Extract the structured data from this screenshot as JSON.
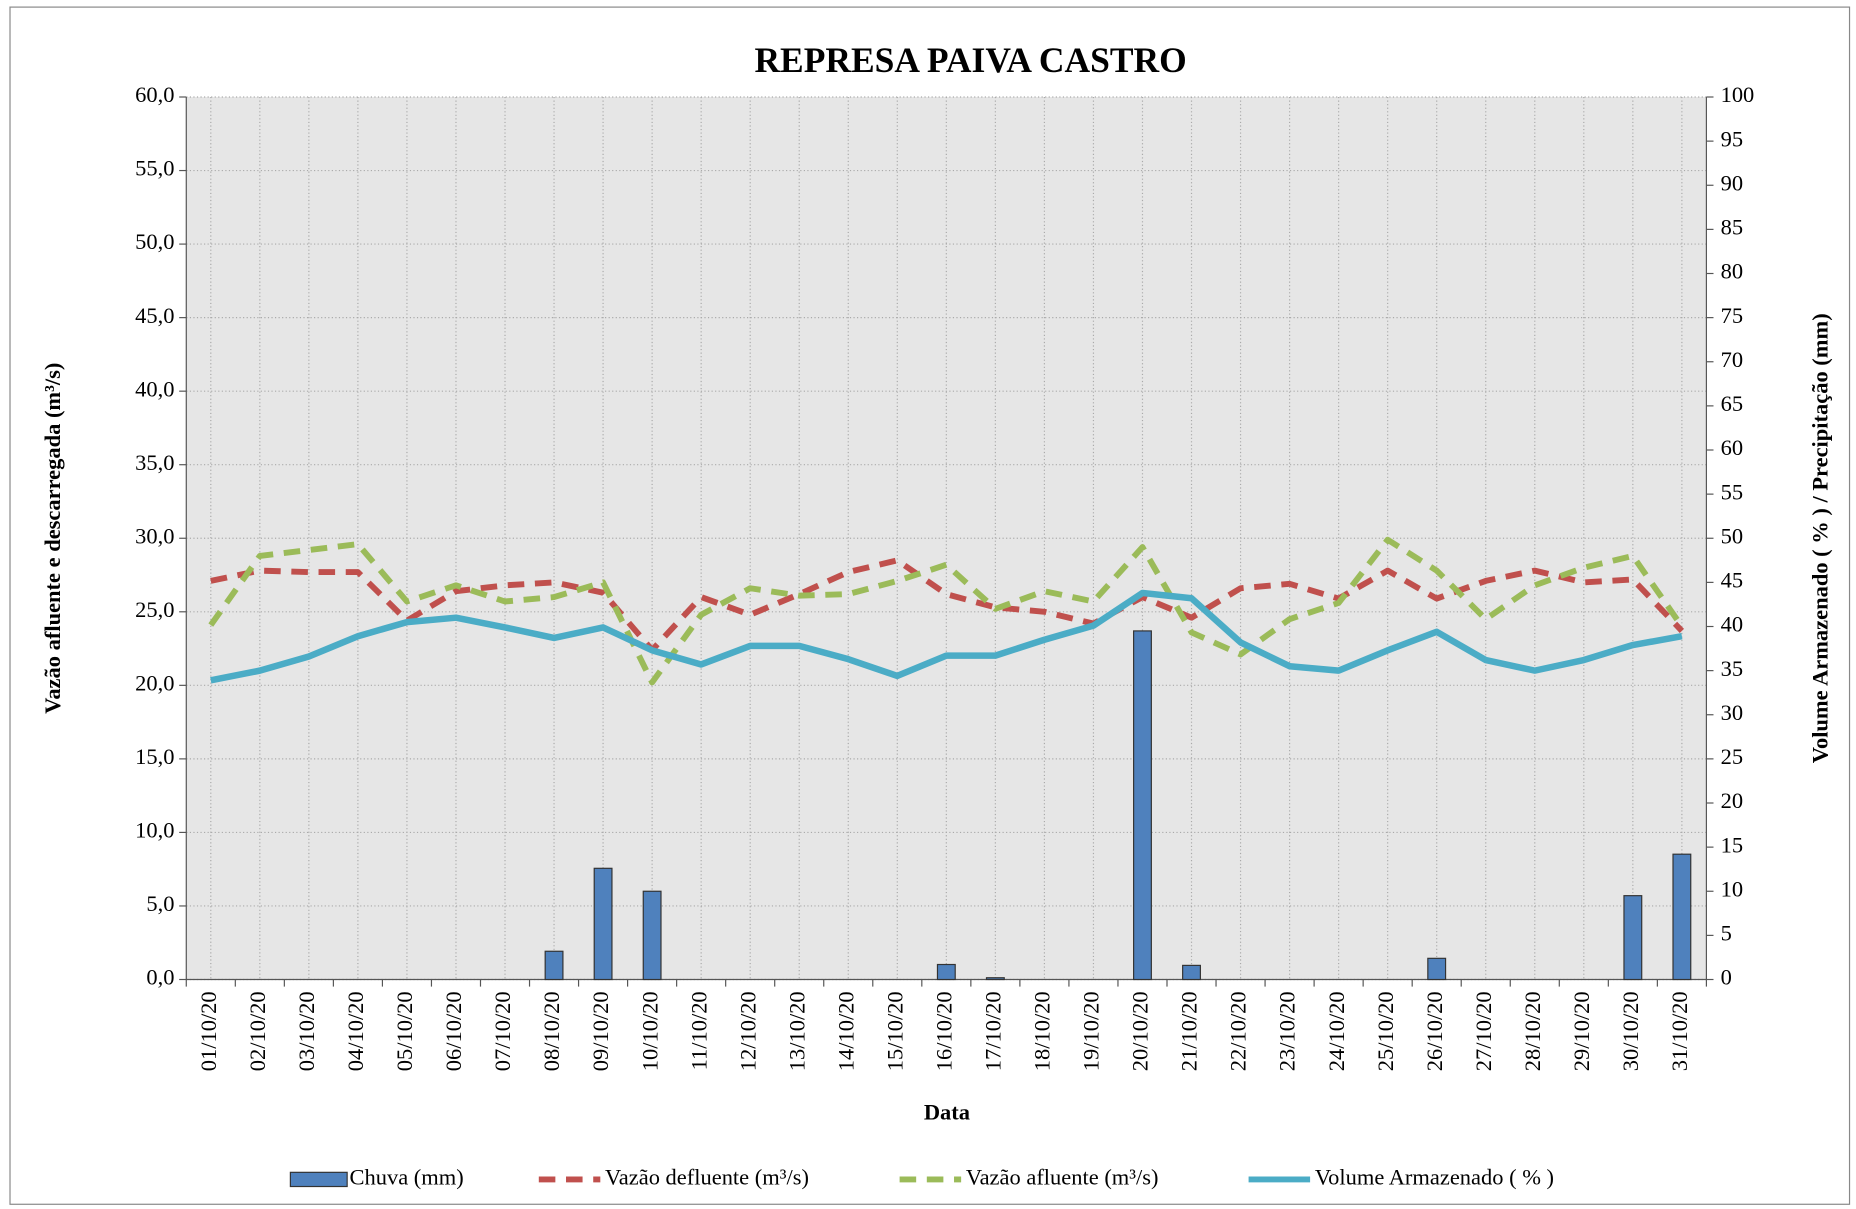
{
  "chart_data": {
    "type": "combo",
    "title": "REPRESA PAIVA CASTRO",
    "x_label": "Data",
    "y_label": "Vazão afluente e descarregada (m³/s)",
    "y2_label": "Volume Armazenado ( % ) / Precipitação  (mm)",
    "categories": [
      "01/10/20",
      "02/10/20",
      "03/10/20",
      "04/10/20",
      "05/10/20",
      "06/10/20",
      "07/10/20",
      "08/10/20",
      "09/10/20",
      "10/10/20",
      "11/10/20",
      "12/10/20",
      "13/10/20",
      "14/10/20",
      "15/10/20",
      "16/10/20",
      "17/10/20",
      "18/10/20",
      "19/10/20",
      "20/10/20",
      "21/10/20",
      "22/10/20",
      "23/10/20",
      "24/10/20",
      "25/10/20",
      "26/10/20",
      "27/10/20",
      "28/10/20",
      "29/10/20",
      "30/10/20",
      "31/10/20"
    ],
    "ylim": [
      0,
      60
    ],
    "yticks": [
      {
        "value": 0,
        "label": "0,0"
      },
      {
        "value": 5,
        "label": "5,0"
      },
      {
        "value": 10,
        "label": "10,0"
      },
      {
        "value": 15,
        "label": "15,0"
      },
      {
        "value": 20,
        "label": "20,0"
      },
      {
        "value": 25,
        "label": "25,0"
      },
      {
        "value": 30,
        "label": "30,0"
      },
      {
        "value": 35,
        "label": "35,0"
      },
      {
        "value": 40,
        "label": "40,0"
      },
      {
        "value": 45,
        "label": "45,0"
      },
      {
        "value": 50,
        "label": "50,0"
      },
      {
        "value": 55,
        "label": "55,0"
      },
      {
        "value": 60,
        "label": "60,0"
      }
    ],
    "y2lim": [
      0,
      100
    ],
    "y2ticks": [
      0,
      5,
      10,
      15,
      20,
      25,
      30,
      35,
      40,
      45,
      50,
      55,
      60,
      65,
      70,
      75,
      80,
      85,
      90,
      95,
      100
    ],
    "grid": true,
    "legend": "bottom",
    "series": [
      {
        "name": "Chuva (mm)",
        "type": "bar",
        "axis": "y2",
        "color": "#4f81bd",
        "values": [
          0,
          0,
          0,
          0,
          0,
          0,
          0,
          3.2,
          12.6,
          10.0,
          0,
          0,
          0,
          0,
          0,
          1.7,
          0.2,
          0,
          0,
          39.5,
          1.6,
          0,
          0,
          0,
          0,
          2.4,
          0,
          0,
          0,
          9.5,
          14.2
        ]
      },
      {
        "name": "Vazão defluente (m³/s)",
        "type": "line",
        "dash": true,
        "color": "#c0504d",
        "values": [
          27.1,
          27.8,
          27.7,
          27.7,
          24.4,
          26.4,
          26.8,
          27.0,
          26.3,
          22.4,
          26.0,
          24.8,
          26.2,
          27.7,
          28.5,
          26.2,
          25.3,
          25.0,
          24.2,
          26.0,
          24.6,
          26.6,
          26.9,
          25.9,
          27.8,
          25.9,
          27.1,
          27.8,
          27.0,
          27.2,
          23.7
        ]
      },
      {
        "name": "Vazão afluente (m³/s)",
        "type": "line",
        "dash": true,
        "color": "#9bbb59",
        "values": [
          24.1,
          28.8,
          29.2,
          29.6,
          25.7,
          26.8,
          25.7,
          26.0,
          27.0,
          20.2,
          24.8,
          26.6,
          26.1,
          26.2,
          27.1,
          28.2,
          25.2,
          26.4,
          25.7,
          29.4,
          23.6,
          22.1,
          24.5,
          25.6,
          29.9,
          27.8,
          24.5,
          26.8,
          28.0,
          28.8,
          24.0
        ]
      },
      {
        "name": "Volume Armazenado ( % )",
        "type": "line",
        "axis": "y2",
        "color": "#4bacc6",
        "values": [
          33.9,
          35.0,
          36.6,
          38.9,
          40.5,
          41.0,
          39.9,
          38.7,
          39.9,
          37.3,
          35.7,
          37.8,
          37.8,
          36.3,
          34.4,
          36.7,
          36.7,
          38.5,
          40.1,
          43.8,
          43.2,
          38.2,
          35.5,
          35.0,
          37.3,
          39.4,
          36.2,
          35.0,
          36.2,
          37.9,
          38.9
        ]
      }
    ]
  }
}
